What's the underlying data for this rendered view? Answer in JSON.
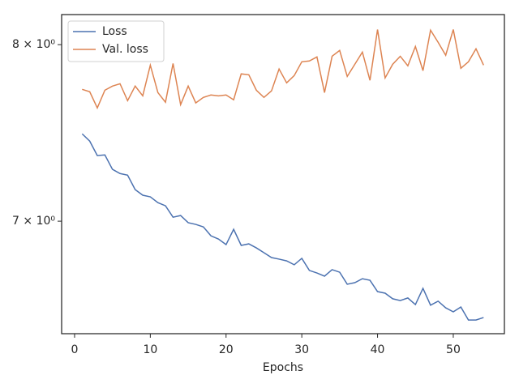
{
  "chart_data": {
    "type": "line",
    "xlabel": "Epochs",
    "x": [
      1,
      2,
      3,
      4,
      5,
      6,
      7,
      8,
      9,
      10,
      11,
      12,
      13,
      14,
      15,
      16,
      17,
      18,
      19,
      20,
      21,
      22,
      23,
      24,
      25,
      26,
      27,
      28,
      29,
      30,
      31,
      32,
      33,
      34,
      35,
      36,
      37,
      38,
      39,
      40,
      41,
      42,
      43,
      44,
      45,
      46,
      47,
      48,
      49,
      50,
      51,
      52,
      53,
      54
    ],
    "series": [
      {
        "name": "Loss",
        "color": "#4c72b0",
        "values": [
          7.478,
          7.437,
          7.356,
          7.36,
          7.28,
          7.257,
          7.248,
          7.169,
          7.139,
          7.13,
          7.099,
          7.082,
          7.021,
          7.03,
          6.992,
          6.983,
          6.97,
          6.923,
          6.906,
          6.877,
          6.957,
          6.873,
          6.881,
          6.86,
          6.835,
          6.81,
          6.802,
          6.793,
          6.773,
          6.806,
          6.744,
          6.731,
          6.715,
          6.748,
          6.735,
          6.674,
          6.682,
          6.702,
          6.694,
          6.637,
          6.629,
          6.601,
          6.592,
          6.605,
          6.572,
          6.653,
          6.569,
          6.589,
          6.556,
          6.536,
          6.56,
          6.496,
          6.496,
          6.508
        ]
      },
      {
        "name": "Val. loss",
        "color": "#dd8452",
        "values": [
          7.734,
          7.72,
          7.626,
          7.729,
          7.753,
          7.767,
          7.668,
          7.753,
          7.696,
          7.877,
          7.715,
          7.659,
          7.887,
          7.645,
          7.753,
          7.655,
          7.687,
          7.701,
          7.696,
          7.701,
          7.673,
          7.825,
          7.82,
          7.729,
          7.687,
          7.725,
          7.854,
          7.772,
          7.815,
          7.897,
          7.902,
          7.926,
          7.715,
          7.93,
          7.965,
          7.81,
          7.882,
          7.955,
          7.787,
          8.092,
          7.801,
          7.882,
          7.93,
          7.873,
          7.989,
          7.844,
          8.088,
          8.014,
          7.936,
          8.092,
          7.858,
          7.897,
          7.975,
          7.877
        ]
      }
    ],
    "xlim": [
      -1.71,
      56.75
    ],
    "xticks": [
      0,
      10,
      20,
      30,
      40,
      50
    ],
    "ylim": [
      6.429,
      8.184
    ],
    "yscale": "log",
    "yticks": [
      {
        "value": 7,
        "label": "7 × 10⁰"
      },
      {
        "value": 8,
        "label": "8 × 10⁰"
      }
    ],
    "legend": "upper left"
  }
}
